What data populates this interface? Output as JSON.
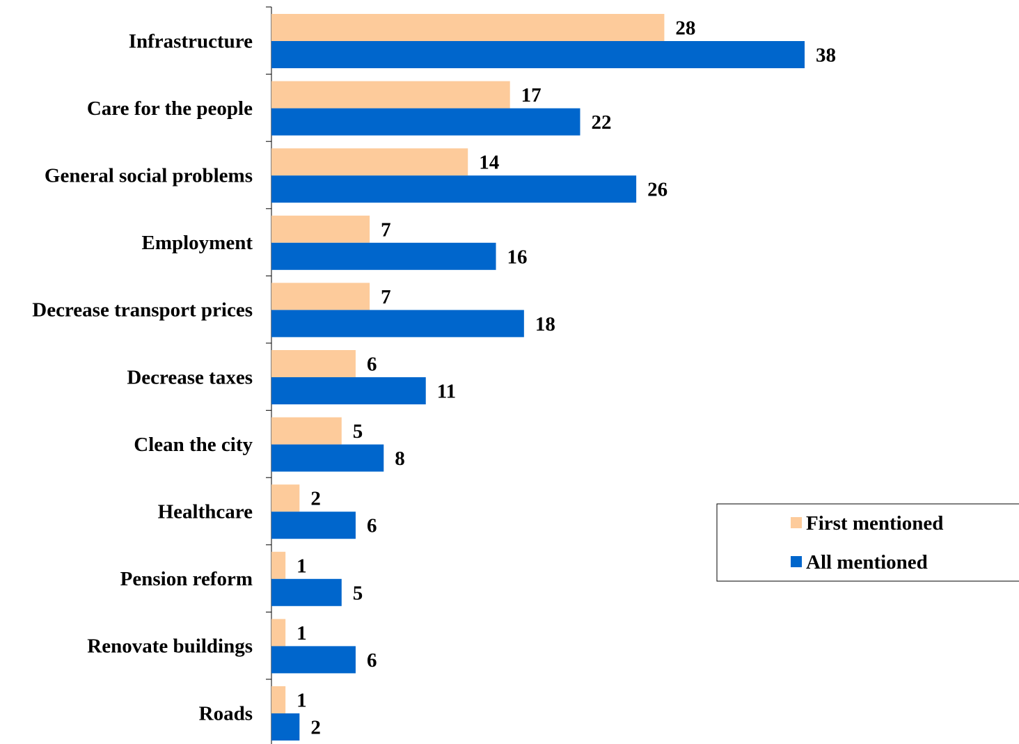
{
  "chart_data": {
    "type": "bar",
    "orientation": "horizontal",
    "categories": [
      "Infrastructure",
      "Care for the people",
      "General social problems",
      "Employment",
      "Decrease transport prices",
      "Decrease taxes",
      "Clean the city",
      "Healthcare",
      "Pension reform",
      "Renovate buildings",
      "Roads"
    ],
    "series": [
      {
        "name": "First mentioned",
        "color": "#FDCB9B",
        "values": [
          28,
          17,
          14,
          7,
          7,
          6,
          5,
          2,
          1,
          1,
          1
        ]
      },
      {
        "name": "All mentioned",
        "color": "#0066CC",
        "values": [
          38,
          22,
          26,
          16,
          18,
          11,
          8,
          6,
          5,
          6,
          2
        ]
      }
    ],
    "xlim": [
      0,
      40
    ],
    "grid": false,
    "legend_position": "right"
  }
}
